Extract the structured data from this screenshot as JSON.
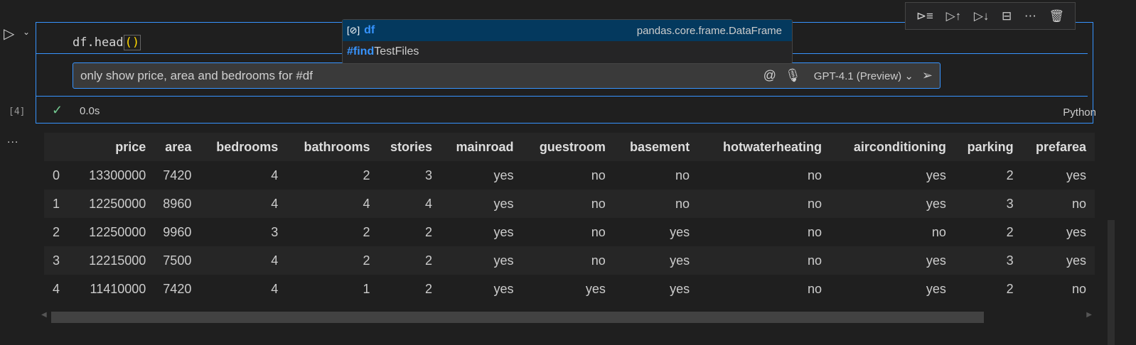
{
  "cell": {
    "code_prefix": "df.head",
    "code_parens": "()",
    "exec_count": "[4]",
    "status_icon": "check-icon",
    "time": "0.0s",
    "language": "Python",
    "more": "..."
  },
  "chat": {
    "input_value": "only show price, area and bedrooms for #df",
    "model": "GPT-4.1 (Preview)"
  },
  "suggestions": [
    {
      "icon": "[⊘]",
      "label": "df",
      "detail": "pandas.core.frame.DataFrame"
    },
    {
      "hl": "#find",
      "rest": "TestFiles"
    }
  ],
  "colors": {
    "accent": "#3794ff",
    "check": "#73c991"
  },
  "table": {
    "columns": [
      "",
      "price",
      "area",
      "bedrooms",
      "bathrooms",
      "stories",
      "mainroad",
      "guestroom",
      "basement",
      "hotwaterheating",
      "airconditioning",
      "parking",
      "prefarea"
    ],
    "rows": [
      [
        "0",
        "13300000",
        "7420",
        "4",
        "2",
        "3",
        "yes",
        "no",
        "no",
        "no",
        "yes",
        "2",
        "yes"
      ],
      [
        "1",
        "12250000",
        "8960",
        "4",
        "4",
        "4",
        "yes",
        "no",
        "no",
        "no",
        "yes",
        "3",
        "no"
      ],
      [
        "2",
        "12250000",
        "9960",
        "3",
        "2",
        "2",
        "yes",
        "no",
        "yes",
        "no",
        "no",
        "2",
        "yes"
      ],
      [
        "3",
        "12215000",
        "7500",
        "4",
        "2",
        "2",
        "yes",
        "no",
        "yes",
        "no",
        "yes",
        "3",
        "yes"
      ],
      [
        "4",
        "11410000",
        "7420",
        "4",
        "1",
        "2",
        "yes",
        "yes",
        "yes",
        "no",
        "yes",
        "2",
        "no"
      ]
    ]
  }
}
